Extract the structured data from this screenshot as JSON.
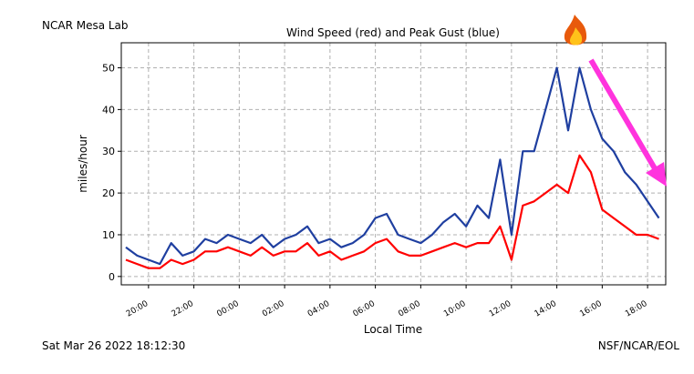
{
  "chart_data": {
    "type": "line",
    "station": "NCAR Mesa Lab",
    "title": "Wind Speed (red) and Peak Gust (blue)",
    "ylabel": "miles/hour",
    "xlabel": "Local Time",
    "timestamp": "Sat Mar 26 2022 18:12:30",
    "credit": "NSF/NCAR/EOL",
    "x": [
      19,
      19.5,
      20,
      20.5,
      21,
      21.5,
      22,
      22.5,
      23,
      23.5,
      24,
      24.5,
      25,
      25.5,
      26,
      26.5,
      27,
      27.5,
      28,
      28.5,
      29,
      29.5,
      30,
      30.5,
      31,
      31.5,
      32,
      32.5,
      33,
      33.5,
      34,
      34.5,
      35,
      35.5,
      36,
      36.5,
      37,
      37.5,
      38,
      38.5,
      39,
      39.5,
      40,
      40.5,
      41,
      41.5,
      42,
      42.5
    ],
    "series": [
      {
        "name": "Peak Gust",
        "color": "#1f3fa0",
        "values": [
          7,
          5,
          4,
          3,
          8,
          5,
          6,
          9,
          8,
          10,
          9,
          8,
          10,
          7,
          9,
          10,
          12,
          8,
          9,
          7,
          8,
          10,
          14,
          15,
          10,
          9,
          8,
          10,
          13,
          15,
          12,
          17,
          14,
          28,
          10,
          30,
          30,
          40,
          50,
          35,
          50,
          40,
          33,
          30,
          25,
          22,
          18,
          14
        ]
      },
      {
        "name": "Wind Speed",
        "color": "#ff0000",
        "values": [
          4,
          3,
          2,
          2,
          4,
          3,
          4,
          6,
          6,
          7,
          6,
          5,
          7,
          5,
          6,
          6,
          8,
          5,
          6,
          4,
          5,
          6,
          8,
          9,
          6,
          5,
          5,
          6,
          7,
          8,
          7,
          8,
          8,
          12,
          4,
          17,
          18,
          20,
          22,
          20,
          29,
          25,
          16,
          14,
          12,
          10,
          10,
          9
        ]
      }
    ],
    "xlim": [
      18.8,
      42.8
    ],
    "xticks": [
      {
        "value": 20,
        "label": "20:00"
      },
      {
        "value": 22,
        "label": "22:00"
      },
      {
        "value": 24,
        "label": "00:00"
      },
      {
        "value": 26,
        "label": "02:00"
      },
      {
        "value": 28,
        "label": "04:00"
      },
      {
        "value": 30,
        "label": "06:00"
      },
      {
        "value": 32,
        "label": "08:00"
      },
      {
        "value": 34,
        "label": "10:00"
      },
      {
        "value": 36,
        "label": "12:00"
      },
      {
        "value": 38,
        "label": "14:00"
      },
      {
        "value": 40,
        "label": "16:00"
      },
      {
        "value": 42,
        "label": "18:00"
      }
    ],
    "ylim": [
      -2,
      56
    ],
    "yticks": [
      0,
      10,
      20,
      30,
      40,
      50
    ],
    "grid": true
  }
}
